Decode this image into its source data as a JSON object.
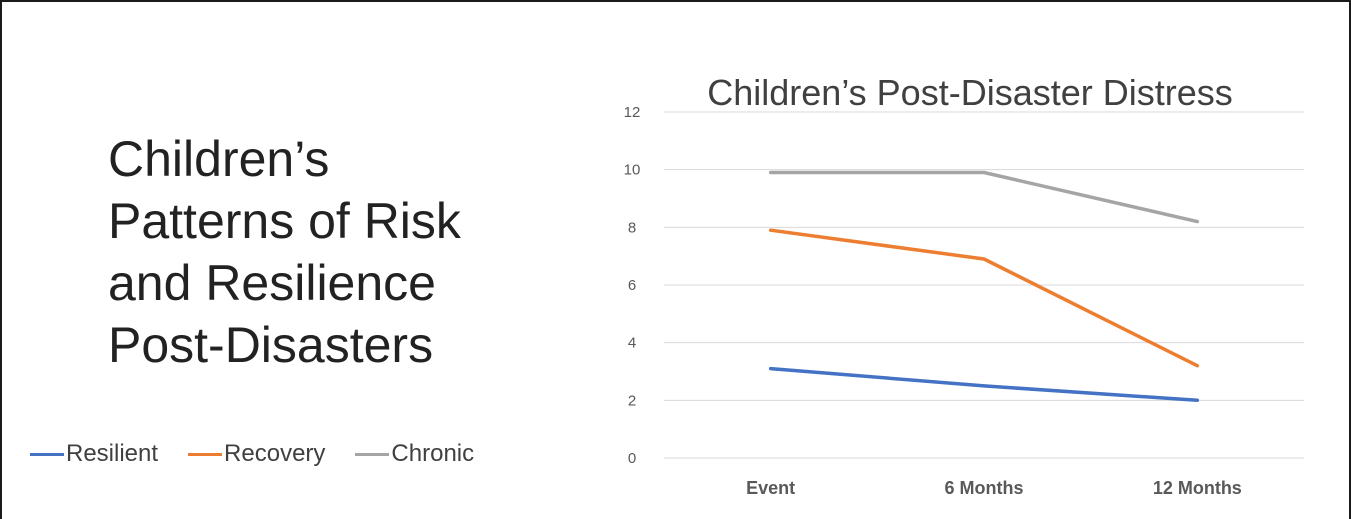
{
  "slide": {
    "title_lines": [
      "Children’s",
      "Patterns of Risk",
      "and Resilience",
      "Post-Disasters"
    ]
  },
  "chart_data": {
    "type": "line",
    "title": "Children’s Post-Disaster Distress",
    "categories": [
      "Event",
      "6 Months",
      "12 Months"
    ],
    "series": [
      {
        "name": "Resilient",
        "values": [
          3.1,
          2.5,
          2.0
        ],
        "color": "#4472C4"
      },
      {
        "name": "Recovery",
        "values": [
          7.9,
          6.9,
          3.2
        ],
        "color": "#ED7D31"
      },
      {
        "name": "Chronic",
        "values": [
          9.9,
          9.9,
          8.2
        ],
        "color": "#A5A5A5"
      }
    ],
    "ylim": [
      0,
      12
    ],
    "yticks": [
      "0",
      "2",
      "4",
      "6",
      "8",
      "10",
      "12"
    ],
    "grid": true,
    "legend_position": "bottom-left"
  }
}
